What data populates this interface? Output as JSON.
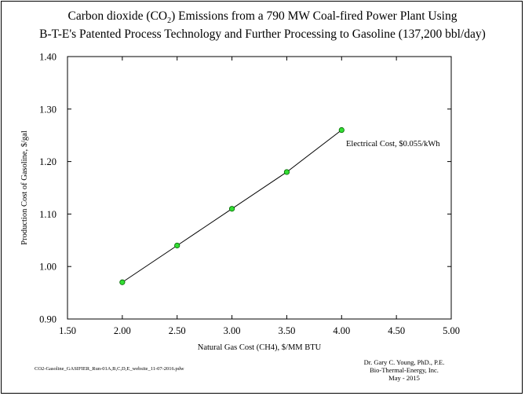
{
  "title": {
    "line1_prefix": "Carbon dioxide (CO",
    "line1_sub": "2",
    "line1_suffix": ") Emissions from a 790 MW Coal-fired Power Plant Using",
    "line2": "B-T-E's Patented Process Technology and Further Processing to Gasoline (137,200 bbl/day)"
  },
  "footer": {
    "file_name": "CO2-Gasoline_GASIFIER_Run-01A,B,C,D,E_website_11-07-2016.pdw",
    "author": "Dr. Gary C. Young, PhD., P.E.",
    "organization": "Bio-Thermal-Energy, Inc.",
    "date": "May - 2015"
  },
  "colors": {
    "marker_fill": "#33dd33",
    "marker_stroke": "#006600",
    "line": "#000000"
  },
  "chart_data": {
    "type": "line",
    "xlabel": "Natural Gas Cost (CH4), $/MM BTU",
    "ylabel": "Production Cost of Gasoline, $/gal",
    "xlim": [
      1.5,
      5.0
    ],
    "ylim": [
      0.9,
      1.4
    ],
    "x_ticks": [
      1.5,
      2.0,
      2.5,
      3.0,
      3.5,
      4.0,
      4.5,
      5.0
    ],
    "y_ticks": [
      0.9,
      1.0,
      1.1,
      1.2,
      1.3,
      1.4
    ],
    "x_tick_labels": [
      "1.50",
      "2.00",
      "2.50",
      "3.00",
      "3.50",
      "4.00",
      "4.50",
      "5.00"
    ],
    "y_tick_labels": [
      "0.90",
      "1.00",
      "1.10",
      "1.20",
      "1.30",
      "1.40"
    ],
    "grid": false,
    "series": [
      {
        "name": "Electrical Cost, $0.055/kWh",
        "x": [
          2.0,
          2.5,
          3.0,
          3.5,
          4.0
        ],
        "y": [
          0.97,
          1.04,
          1.11,
          1.18,
          1.26
        ]
      }
    ],
    "annotations": [
      {
        "text": "Electrical Cost, $0.055/kWh"
      }
    ]
  }
}
